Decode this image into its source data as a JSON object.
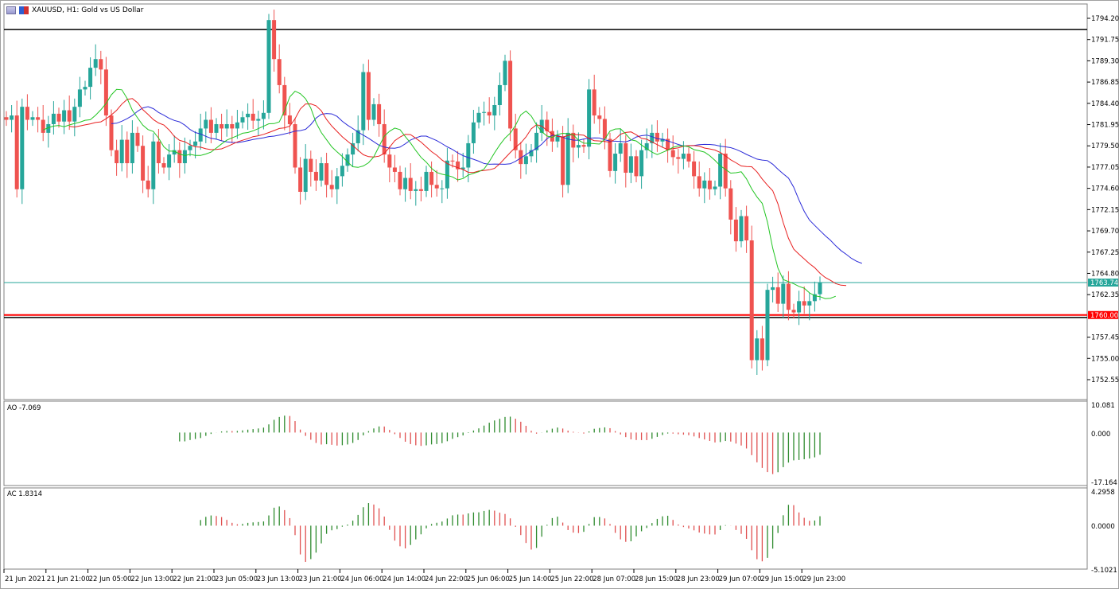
{
  "header": {
    "title": "XAUUSD, H1:  Gold vs US Dollar"
  },
  "colors": {
    "bull": "#26a69a",
    "bear": "#ef5350",
    "jaw": "#2b2bd8",
    "teeth": "#e82020",
    "lips": "#22c522",
    "ao_up": "#2e8b2e",
    "ao_down": "#e05050",
    "bid_line": "#26a69a",
    "level_line": "#ff0000"
  },
  "price_axis": {
    "ticks": [
      "1794.20",
      "1791.75",
      "1789.30",
      "1786.85",
      "1784.40",
      "1781.95",
      "1779.50",
      "1777.05",
      "1774.60",
      "1772.15",
      "1769.70",
      "1767.25",
      "1764.80",
      "1762.35",
      "1757.45",
      "1755.00",
      "1752.55"
    ],
    "bid_label": "1763.74",
    "level_label": "1760.00"
  },
  "ao_pane": {
    "label": "AO -7.069",
    "ticks": [
      "10.081",
      "0.000",
      "-17.164"
    ]
  },
  "ac_pane": {
    "label": "AC 1.8314",
    "ticks": [
      "4.2958",
      "0.0000",
      "-5.1021"
    ]
  },
  "time_axis": {
    "labels": [
      "21 Jun 2021",
      "21 Jun 21:00",
      "22 Jun 05:00",
      "22 Jun 13:00",
      "22 Jun 21:00",
      "23 Jun 05:00",
      "23 Jun 13:00",
      "23 Jun 21:00",
      "24 Jun 06:00",
      "24 Jun 14:00",
      "24 Jun 22:00",
      "25 Jun 06:00",
      "25 Jun 14:00",
      "25 Jun 22:00",
      "28 Jun 07:00",
      "28 Jun 15:00",
      "28 Jun 23:00",
      "29 Jun 07:00",
      "29 Jun 15:00",
      "29 Jun 23:00"
    ]
  },
  "chart_data": {
    "type": "candlestick",
    "symbol": "XAUUSD",
    "timeframe": "H1",
    "ylim": [
      1750.3,
      1795.6
    ],
    "indicators": [
      "Alligator (13/8/5)",
      "Awesome Oscillator",
      "Accelerator Oscillator"
    ],
    "horizontal_lines": [
      1792.9,
      1760.0,
      1759.75,
      1763.74
    ],
    "ao_range": [
      -17.164,
      10.081
    ],
    "ac_range": [
      -5.1021,
      4.2958
    ],
    "close": [
      1782.5,
      1783,
      1774.5,
      1784,
      1782.5,
      1782.8,
      1782.5,
      1781,
      1782,
      1783.2,
      1782.3,
      1783.6,
      1782.3,
      1784,
      1786,
      1786.3,
      1788.5,
      1789.5,
      1788.3,
      1783,
      1779,
      1777.5,
      1780.2,
      1777.5,
      1781,
      1779.5,
      1775.5,
      1774.5,
      1780,
      1777.5,
      1777,
      1778.5,
      1779,
      1777.5,
      1779,
      1779.5,
      1780,
      1781.5,
      1782.5,
      1781,
      1782,
      1781.5,
      1782,
      1781.5,
      1782.2,
      1782.8,
      1783.2,
      1782.4,
      1782.6,
      1783.3,
      1794,
      1789.5,
      1786.5,
      1783,
      1782,
      1777,
      1774.2,
      1778,
      1776.5,
      1775.5,
      1777.5,
      1775,
      1774.5,
      1776,
      1777.2,
      1778.5,
      1779.8,
      1781.3,
      1788,
      1782.5,
      1784.3,
      1782,
      1778.5,
      1777,
      1776.5,
      1774.5,
      1775.8,
      1774.3,
      1774.5,
      1774.3,
      1776.5,
      1775,
      1774.6,
      1774.6,
      1777.8,
      1777.7,
      1776.8,
      1777,
      1779.8,
      1782.2,
      1783.3,
      1783.4,
      1783,
      1784.2,
      1786.5,
      1789.3,
      1781.5,
      1779,
      1777.4,
      1778.3,
      1779,
      1781,
      1782.5,
      1781.2,
      1780,
      1780.6,
      1775,
      1781,
      1779.3,
      1779.6,
      1779.4,
      1786,
      1783,
      1782.6,
      1780.3,
      1776.6,
      1778.6,
      1779.8,
      1776.4,
      1778.3,
      1776,
      1779,
      1779.8,
      1781,
      1780,
      1780.3,
      1779,
      1778.2,
      1778,
      1778.6,
      1777.7,
      1776,
      1774.6,
      1775.5,
      1774.5,
      1774.8,
      1778.6,
      1774.6,
      1771,
      1768.5,
      1771.4,
      1768.6,
      1754.8,
      1757.3,
      1754.8,
      1762.9,
      1763.2,
      1761.3,
      1763.6,
      1760.6,
      1760.3,
      1761.6,
      1761.1,
      1761.6,
      1762.4,
      1763.74
    ]
  }
}
